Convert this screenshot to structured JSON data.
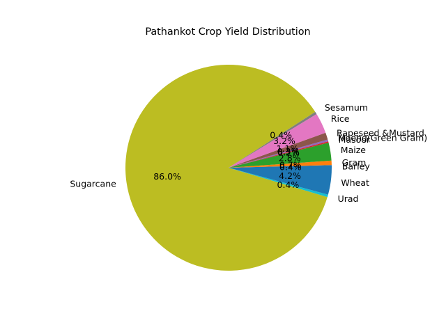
{
  "chart_data": {
    "type": "pie",
    "title": "Pathankot Crop Yield Distribution",
    "start_angle_deg": 0,
    "direction": "counterclockwise",
    "slices": [
      {
        "label": "Barley",
        "value": 0.4,
        "pct_label": "0.4%",
        "color": "#1f77b4"
      },
      {
        "label": "Gram",
        "value": 0.7,
        "pct_label": "0.7%",
        "color": "#ff7f0e"
      },
      {
        "label": "Maize",
        "value": 2.8,
        "pct_label": "2.8%",
        "color": "#2ca02c"
      },
      {
        "label": "Masoor",
        "value": 0.2,
        "pct_label": "0.2%",
        "color": "#d62728"
      },
      {
        "label": "Moong(Green Gram)",
        "value": 0.3,
        "pct_label": "0.3%",
        "color": "#9467bd"
      },
      {
        "label": "Rapeseed &Mustard",
        "value": 1.1,
        "pct_label": "1.1%",
        "color": "#8c564b"
      },
      {
        "label": "Rice",
        "value": 3.2,
        "pct_label": "3.2%",
        "color": "#e377c2"
      },
      {
        "label": "Sesamum",
        "value": 0.4,
        "pct_label": "0.4%",
        "color": "#7f7f7f"
      },
      {
        "label": "Sugarcane",
        "value": 86.0,
        "pct_label": "86.0%",
        "color": "#bcbd22"
      },
      {
        "label": "Urad",
        "value": 0.4,
        "pct_label": "0.4%",
        "color": "#17becf"
      },
      {
        "label": "Wheat",
        "value": 4.2,
        "pct_label": "4.2%",
        "color": "#1f77b4"
      }
    ]
  }
}
